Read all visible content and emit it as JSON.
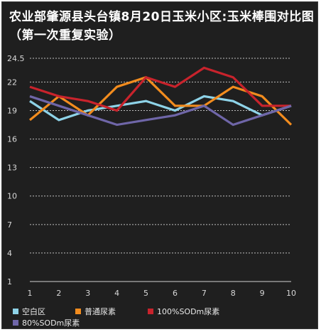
{
  "chart_data": {
    "type": "line",
    "title": "农业部肇源县头台镇8月20日玉米小区:玉米棒围对比图（第一次重复实验）",
    "x": [
      1,
      2,
      3,
      4,
      5,
      6,
      7,
      8,
      9,
      10
    ],
    "yticks": [
      1,
      4,
      7,
      10,
      13,
      16,
      19,
      22,
      24.5
    ],
    "ylim": [
      1,
      24.5
    ],
    "grid": true,
    "legend_position": "bottom",
    "series": [
      {
        "name": "空白区",
        "color": "#8ed3e8",
        "values": [
          20,
          18,
          19,
          19.5,
          20,
          19,
          20.5,
          20,
          18.5,
          19.5
        ]
      },
      {
        "name": "普通尿素",
        "color": "#f28c1e",
        "values": [
          18,
          20.5,
          18.5,
          21.5,
          22.5,
          19.5,
          19.5,
          21.5,
          20.5,
          17.5
        ]
      },
      {
        "name": "100%SODm尿素",
        "color": "#c8232c",
        "values": [
          21.5,
          20.5,
          20,
          19,
          22.5,
          21.5,
          23.5,
          22.5,
          19.5,
          19.5
        ]
      },
      {
        "name": "80%SODm尿素",
        "color": "#6f66a8",
        "values": [
          20.5,
          19.5,
          18.5,
          17.5,
          18,
          18.5,
          19.5,
          17.5,
          18.5,
          19.5
        ]
      }
    ]
  }
}
